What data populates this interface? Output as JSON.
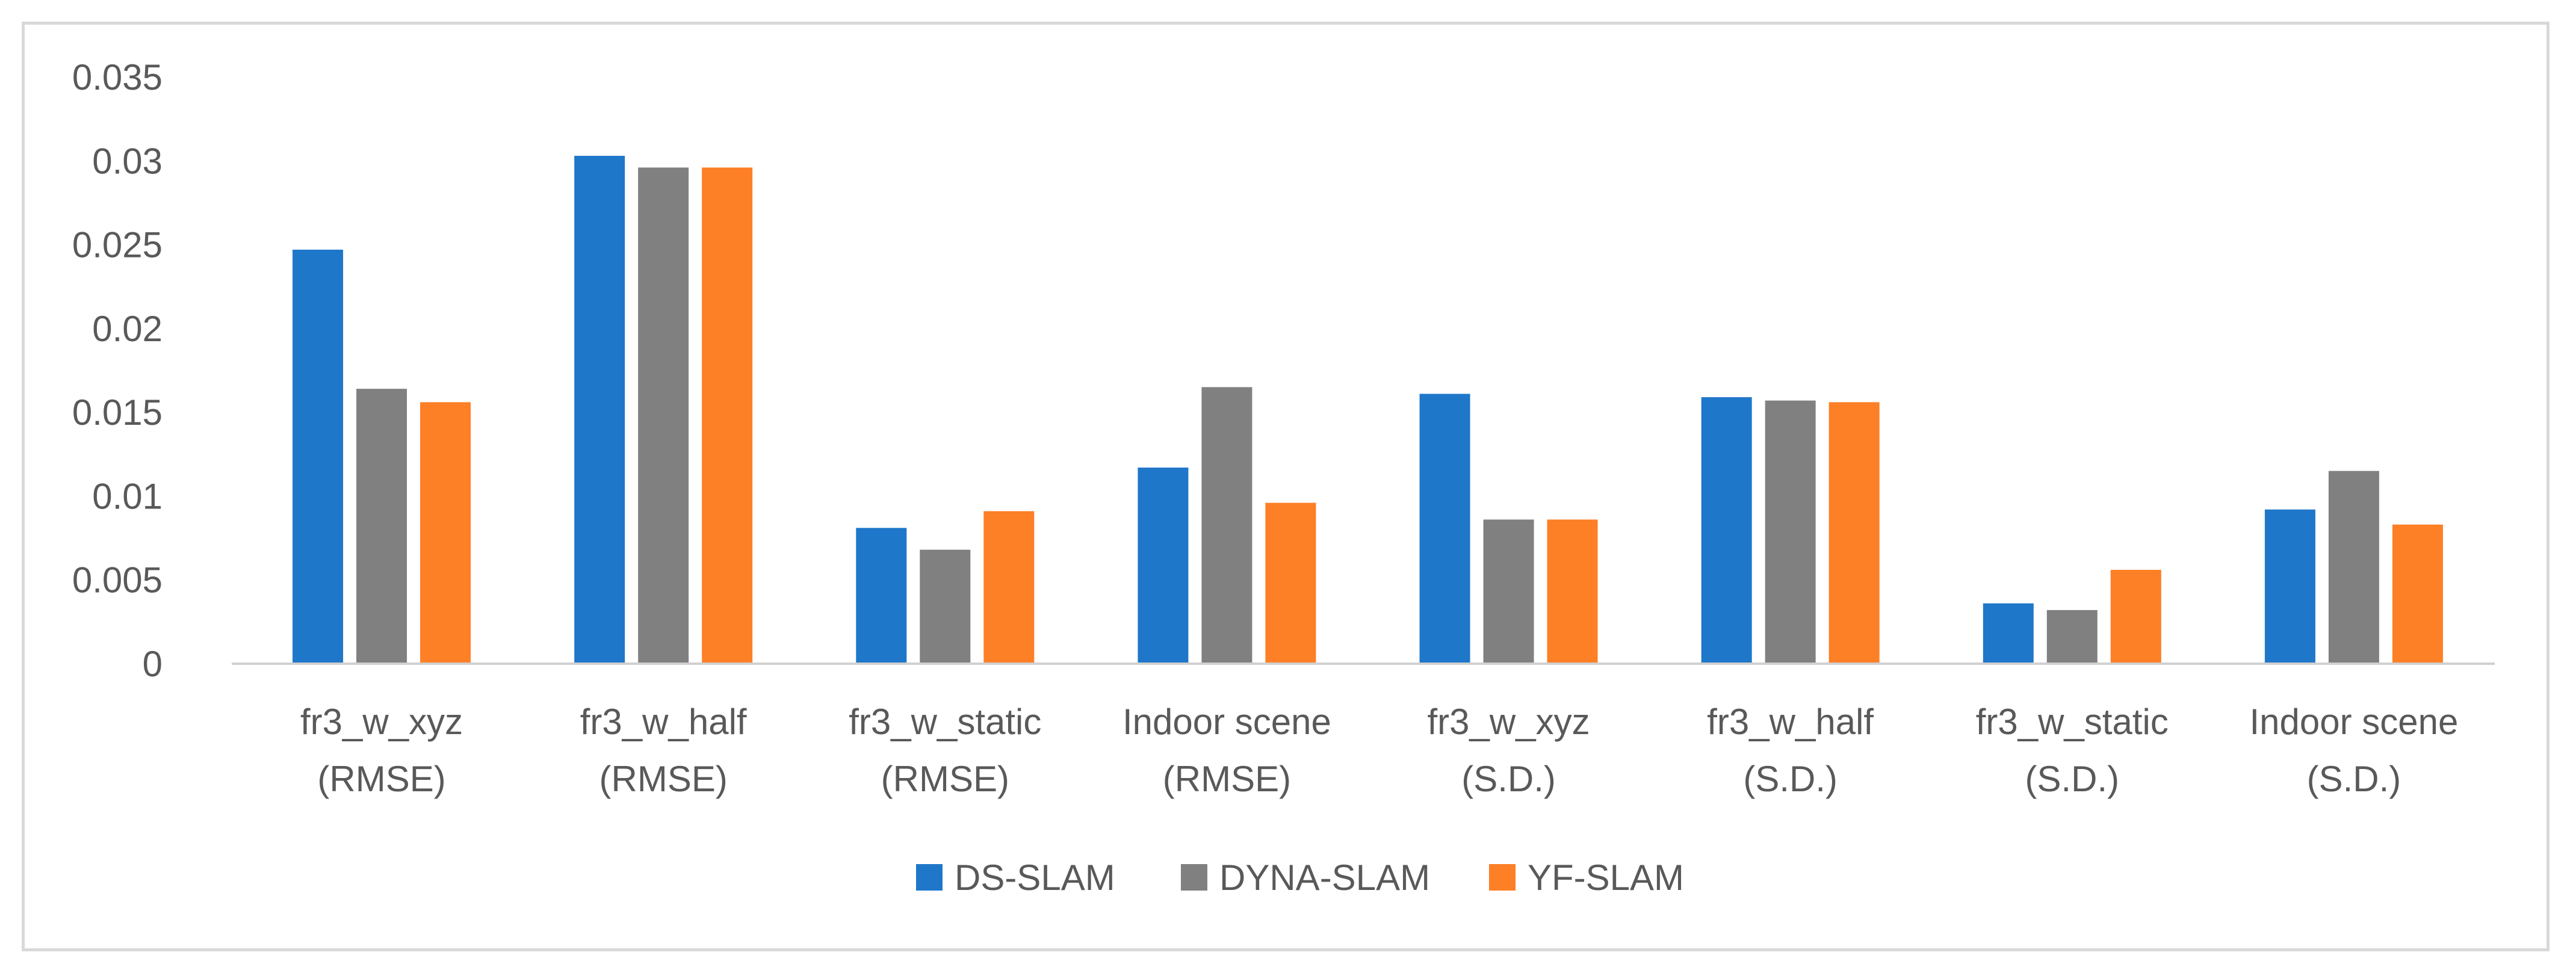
{
  "chart_data": {
    "type": "bar",
    "title": "",
    "xlabel": "",
    "ylabel": "",
    "ylim": [
      0,
      0.035
    ],
    "yticks": [
      "0",
      "0.005",
      "0.01",
      "0.015",
      "0.02",
      "0.025",
      "0.03",
      "0.035"
    ],
    "ytick_values": [
      0,
      0.005,
      0.01,
      0.015,
      0.02,
      0.025,
      0.03,
      0.035
    ],
    "grid": false,
    "legend_position": "bottom-center",
    "categories": [
      [
        "fr3_w_xyz",
        "(RMSE)"
      ],
      [
        "fr3_w_half",
        "(RMSE)"
      ],
      [
        "fr3_w_static",
        "(RMSE)"
      ],
      [
        "Indoor scene",
        "(RMSE)"
      ],
      [
        "fr3_w_xyz",
        "(S.D.)"
      ],
      [
        "fr3_w_half",
        "(S.D.)"
      ],
      [
        "fr3_w_static",
        "(S.D.)"
      ],
      [
        "Indoor scene",
        "(S.D.)"
      ]
    ],
    "series": [
      {
        "name": "DS-SLAM",
        "color": "#1f77c9",
        "values": [
          0.0247,
          0.0303,
          0.0081,
          0.0117,
          0.0161,
          0.0159,
          0.0036,
          0.0092
        ]
      },
      {
        "name": "DYNA-SLAM",
        "color": "#808080",
        "values": [
          0.0164,
          0.0296,
          0.0068,
          0.0165,
          0.0086,
          0.0157,
          0.0032,
          0.0115
        ]
      },
      {
        "name": "YF-SLAM",
        "color": "#fd7f26",
        "values": [
          0.0156,
          0.0296,
          0.0091,
          0.0096,
          0.0086,
          0.0156,
          0.0056,
          0.0083
        ]
      }
    ]
  }
}
